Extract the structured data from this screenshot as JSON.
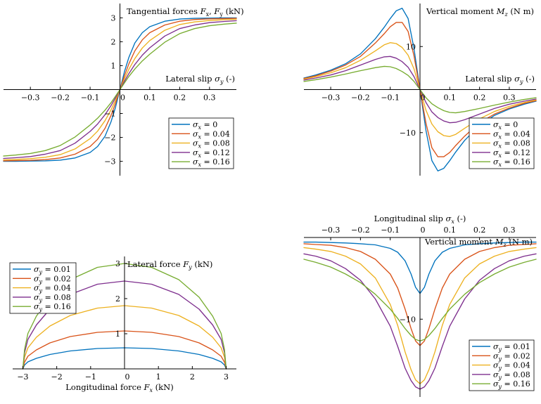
{
  "colors": [
    "#0072BD",
    "#D95319",
    "#EDB120",
    "#7E2F8E",
    "#77AC30"
  ],
  "chart_data": [
    {
      "id": "tangential",
      "type": "line",
      "title_html": "Tangential forces <tspan font-style=\"italic\">F</tspan><tspan font-size=\"8\" dy=\"3\">x</tspan><tspan dy=\"-3\">, </tspan><tspan font-style=\"italic\">F</tspan><tspan font-size=\"8\" dy=\"3\">y</tspan><tspan dy=\"-3\"> (kN)</tspan>",
      "xlabel_html": "Lateral slip <tspan font-style=\"italic\">σ</tspan><tspan font-size=\"8\" dy=\"3\" font-style=\"italic\">y</tspan><tspan dy=\"-3\"> (-)</tspan>",
      "xlim": [
        -0.39,
        0.39
      ],
      "ylim": [
        -3.6,
        3.6
      ],
      "xticks": [
        -0.3,
        -0.2,
        -0.1,
        0,
        0.1,
        0.2,
        0.3
      ],
      "xtick_labels": [
        "−0.3",
        "−0.2",
        "−0.1",
        "0",
        "0.1",
        "0.2",
        "0.3"
      ],
      "yticks": [
        -3,
        -2,
        -1,
        0,
        1,
        2,
        3
      ],
      "ytick_labels": [
        "−3",
        "−2",
        "−1",
        "0",
        "1",
        "2",
        "3"
      ],
      "x": [
        -0.39,
        -0.35,
        -0.3,
        -0.25,
        -0.2,
        -0.15,
        -0.1,
        -0.075,
        -0.05,
        -0.03,
        -0.015,
        0,
        0.015,
        0.03,
        0.05,
        0.075,
        0.1,
        0.15,
        0.2,
        0.25,
        0.3,
        0.35,
        0.39
      ],
      "series": [
        {
          "label_html": "<tspan font-style=\"italic\">σ</tspan><tspan font-size=\"8\" dy=\"3\" font-style=\"italic\">x</tspan><tspan dy=\"-3\"> = 0</tspan>",
          "values": [
            -3.0,
            -3.0,
            -2.99,
            -2.98,
            -2.95,
            -2.86,
            -2.63,
            -2.38,
            -1.95,
            -1.35,
            -0.75,
            0,
            0.75,
            1.35,
            1.95,
            2.38,
            2.63,
            2.86,
            2.95,
            2.98,
            2.99,
            3.0,
            3.0
          ]
        },
        {
          "label_html": "<tspan font-style=\"italic\">σ</tspan><tspan font-size=\"8\" dy=\"3\" font-style=\"italic\">x</tspan><tspan dy=\"-3\"> = 0.04</tspan>",
          "values": [
            -2.98,
            -2.97,
            -2.96,
            -2.93,
            -2.86,
            -2.7,
            -2.38,
            -2.08,
            -1.62,
            -1.08,
            -0.58,
            0,
            0.58,
            1.08,
            1.62,
            2.08,
            2.38,
            2.7,
            2.86,
            2.93,
            2.96,
            2.97,
            2.98
          ]
        },
        {
          "label_html": "<tspan font-style=\"italic\">σ</tspan><tspan font-size=\"8\" dy=\"3\" font-style=\"italic\">x</tspan><tspan dy=\"-3\"> = 0.08</tspan>",
          "values": [
            -2.94,
            -2.92,
            -2.89,
            -2.83,
            -2.72,
            -2.48,
            -2.05,
            -1.74,
            -1.3,
            -0.85,
            -0.45,
            0,
            0.45,
            0.85,
            1.3,
            1.74,
            2.05,
            2.48,
            2.72,
            2.83,
            2.89,
            2.92,
            2.94
          ]
        },
        {
          "label_html": "<tspan font-style=\"italic\">σ</tspan><tspan font-size=\"8\" dy=\"3\" font-style=\"italic\">x</tspan><tspan dy=\"-3\"> = 0.12</tspan>",
          "values": [
            -2.88,
            -2.85,
            -2.8,
            -2.7,
            -2.55,
            -2.24,
            -1.75,
            -1.44,
            -1.05,
            -0.67,
            -0.35,
            0,
            0.35,
            0.67,
            1.05,
            1.44,
            1.75,
            2.24,
            2.55,
            2.7,
            2.8,
            2.85,
            2.88
          ]
        },
        {
          "label_html": "<tspan font-style=\"italic\">σ</tspan><tspan font-size=\"8\" dy=\"3\" font-style=\"italic\">x</tspan><tspan dy=\"-3\"> = 0.16</tspan>",
          "values": [
            -2.78,
            -2.74,
            -2.67,
            -2.55,
            -2.34,
            -1.98,
            -1.48,
            -1.2,
            -0.86,
            -0.55,
            -0.28,
            0,
            0.28,
            0.55,
            0.86,
            1.2,
            1.48,
            1.98,
            2.34,
            2.55,
            2.67,
            2.74,
            2.78
          ]
        }
      ],
      "legend_position": "lower-right"
    },
    {
      "id": "vertical-moment-lateral",
      "type": "line",
      "title_html": "Vertical moment <tspan font-style=\"italic\">M</tspan><tspan font-size=\"8\" dy=\"3\" font-style=\"italic\">z</tspan><tspan dy=\"-3\"> (N m)</tspan>",
      "xlabel_html": "Lateral slip <tspan font-style=\"italic\">σ</tspan><tspan font-size=\"8\" dy=\"3\" font-style=\"italic\">y</tspan><tspan dy=\"-3\"> (-)</tspan>",
      "xlim": [
        -0.39,
        0.39
      ],
      "ylim": [
        -20,
        20
      ],
      "xticks": [
        -0.3,
        -0.2,
        -0.1,
        0,
        0.1,
        0.2,
        0.3
      ],
      "xtick_labels": [
        "−0.3",
        "−0.2",
        "−0.1",
        "0",
        "0.1",
        "0.2",
        "0.3"
      ],
      "yticks": [
        -10,
        0,
        10
      ],
      "ytick_labels": [
        "−10",
        "0",
        "10"
      ],
      "x": [
        -0.39,
        -0.35,
        -0.3,
        -0.25,
        -0.2,
        -0.15,
        -0.12,
        -0.1,
        -0.08,
        -0.06,
        -0.04,
        -0.02,
        0,
        0.02,
        0.04,
        0.06,
        0.08,
        0.1,
        0.12,
        0.15,
        0.2,
        0.25,
        0.3,
        0.35,
        0.39
      ],
      "series": [
        {
          "label_html": "<tspan font-style=\"italic\">σ</tspan><tspan font-size=\"8\" dy=\"3\" font-style=\"italic\">x</tspan><tspan dy=\"-3\"> = 0</tspan>",
          "values": [
            2.7,
            3.4,
            4.5,
            6.0,
            8.3,
            11.8,
            14.5,
            16.5,
            18.3,
            18.9,
            16.5,
            9.5,
            0,
            -9.5,
            -16.5,
            -18.9,
            -18.3,
            -16.5,
            -14.5,
            -11.8,
            -8.3,
            -6.0,
            -4.5,
            -3.4,
            -2.7
          ]
        },
        {
          "label_html": "<tspan font-style=\"italic\">σ</tspan><tspan font-size=\"8\" dy=\"3\" font-style=\"italic\">x</tspan><tspan dy=\"-3\"> = 0.04</tspan>",
          "values": [
            2.6,
            3.2,
            4.3,
            5.7,
            7.7,
            10.8,
            13.0,
            14.6,
            15.6,
            15.6,
            13.5,
            7.8,
            0,
            -7.8,
            -13.5,
            -15.6,
            -15.6,
            -14.6,
            -13.0,
            -10.8,
            -7.7,
            -5.7,
            -4.3,
            -3.2,
            -2.6
          ]
        },
        {
          "label_html": "<tspan font-style=\"italic\">σ</tspan><tspan font-size=\"8\" dy=\"3\" font-style=\"italic\">x</tspan><tspan dy=\"-3\"> = 0.08</tspan>",
          "values": [
            2.4,
            3.0,
            3.9,
            5.1,
            6.8,
            9.0,
            10.4,
            10.9,
            10.7,
            9.8,
            8.0,
            4.8,
            0,
            -4.8,
            -8.0,
            -9.8,
            -10.7,
            -10.9,
            -10.4,
            -9.0,
            -6.8,
            -5.1,
            -3.9,
            -3.0,
            -2.4
          ]
        },
        {
          "label_html": "<tspan font-style=\"italic\">σ</tspan><tspan font-size=\"8\" dy=\"3\" font-style=\"italic\">x</tspan><tspan dy=\"-3\"> = 0.12</tspan>",
          "values": [
            2.2,
            2.7,
            3.4,
            4.4,
            5.7,
            7.0,
            7.6,
            7.7,
            7.3,
            6.5,
            5.2,
            3.0,
            0,
            -3.0,
            -5.2,
            -6.5,
            -7.3,
            -7.7,
            -7.6,
            -7.0,
            -5.7,
            -4.4,
            -3.4,
            -2.7,
            -2.2
          ]
        },
        {
          "label_html": "<tspan font-style=\"italic\">σ</tspan><tspan font-size=\"8\" dy=\"3\" font-style=\"italic\">x</tspan><tspan dy=\"-3\"> = 0.16</tspan>",
          "values": [
            1.9,
            2.3,
            2.9,
            3.6,
            4.4,
            5.1,
            5.4,
            5.3,
            4.9,
            4.2,
            3.3,
            1.9,
            0,
            -1.9,
            -3.3,
            -4.2,
            -4.9,
            -5.3,
            -5.4,
            -5.1,
            -4.4,
            -3.6,
            -2.9,
            -2.3,
            -1.9
          ]
        }
      ],
      "legend_position": "lower-right"
    },
    {
      "id": "friction-ellipse",
      "type": "line",
      "title_html": "Lateral force <tspan font-style=\"italic\">F</tspan><tspan font-size=\"8\" dy=\"3\" font-style=\"italic\">y</tspan><tspan dy=\"-3\"> (kN)</tspan>",
      "xlabel_html": "Longitudinal force <tspan font-style=\"italic\">F</tspan><tspan font-size=\"8\" dy=\"3\" font-style=\"italic\">x</tspan><tspan dy=\"-3\"> (kN)</tspan>",
      "xlim": [
        -3.3,
        3.3
      ],
      "ylim": [
        0,
        3.2
      ],
      "xticks": [
        -3,
        -2,
        -1,
        0,
        1,
        2,
        3
      ],
      "xtick_labels": [
        "−3",
        "−2",
        "−1",
        "0",
        "1",
        "2",
        "3"
      ],
      "yticks": [
        1,
        2,
        3
      ],
      "ytick_labels": [
        "1",
        "2",
        "3"
      ],
      "x": [
        -3.0,
        -2.95,
        -2.85,
        -2.6,
        -2.2,
        -1.6,
        -0.8,
        0,
        0.8,
        1.6,
        2.2,
        2.6,
        2.85,
        2.95,
        3.0
      ],
      "series": [
        {
          "label_html": "<tspan font-style=\"italic\">σ</tspan><tspan font-size=\"8\" dy=\"3\" font-style=\"italic\">y</tspan><tspan dy=\"-3\"> = 0.01</tspan>",
          "values": [
            0.0,
            0.11,
            0.2,
            0.3,
            0.41,
            0.51,
            0.58,
            0.6,
            0.58,
            0.51,
            0.41,
            0.3,
            0.2,
            0.11,
            0.0
          ]
        },
        {
          "label_html": "<tspan font-style=\"italic\">σ</tspan><tspan font-size=\"8\" dy=\"3\" font-style=\"italic\">y</tspan><tspan dy=\"-3\"> = 0.02</tspan>",
          "values": [
            0.0,
            0.19,
            0.36,
            0.54,
            0.74,
            0.92,
            1.04,
            1.08,
            1.04,
            0.92,
            0.74,
            0.54,
            0.36,
            0.19,
            0.0
          ]
        },
        {
          "label_html": "<tspan font-style=\"italic\">σ</tspan><tspan font-size=\"8\" dy=\"3\" font-style=\"italic\">y</tspan><tspan dy=\"-3\"> = 0.04</tspan>",
          "values": [
            0.0,
            0.33,
            0.6,
            0.9,
            1.22,
            1.52,
            1.73,
            1.8,
            1.73,
            1.52,
            1.22,
            0.9,
            0.6,
            0.33,
            0.0
          ]
        },
        {
          "label_html": "<tspan font-style=\"italic\">σ</tspan><tspan font-size=\"8\" dy=\"3\" font-style=\"italic\">y</tspan><tspan dy=\"-3\"> = 0.08</tspan>",
          "values": [
            0.0,
            0.46,
            0.84,
            1.25,
            1.7,
            2.12,
            2.41,
            2.5,
            2.41,
            2.12,
            1.7,
            1.25,
            0.84,
            0.46,
            0.0
          ]
        },
        {
          "label_html": "<tspan font-style=\"italic\">σ</tspan><tspan font-size=\"8\" dy=\"3\" font-style=\"italic\">y</tspan><tspan dy=\"-3\"> = 0.16</tspan>",
          "values": [
            0.0,
            0.55,
            1.01,
            1.5,
            2.04,
            2.54,
            2.89,
            3.0,
            2.89,
            2.54,
            2.04,
            1.5,
            1.01,
            0.55,
            0.0
          ]
        }
      ],
      "legend_position": "top-left"
    },
    {
      "id": "vertical-moment-longitudinal",
      "type": "line",
      "title_html": "Vertical moment <tspan font-style=\"italic\">M</tspan><tspan font-size=\"8\" dy=\"3\" font-style=\"italic\">z</tspan><tspan dy=\"-3\"> (N m)</tspan>",
      "xlabel_html": "Longitudinal slip <tspan font-style=\"italic\">σ</tspan><tspan font-size=\"8\" dy=\"3\" font-style=\"italic\">x</tspan><tspan dy=\"-3\"> (-)</tspan>",
      "xlim": [
        -0.39,
        0.39
      ],
      "ylim": [
        -20,
        0.5
      ],
      "xticks": [
        -0.3,
        -0.2,
        -0.1,
        0,
        0.1,
        0.2,
        0.3
      ],
      "xtick_labels": [
        "−0.3",
        "−0.2",
        "−0.1",
        "0",
        "0.1",
        "0.2",
        "0.3"
      ],
      "yticks": [
        -10
      ],
      "ytick_labels": [
        "−10"
      ],
      "x": [
        -0.39,
        -0.35,
        -0.3,
        -0.25,
        -0.2,
        -0.15,
        -0.1,
        -0.075,
        -0.05,
        -0.03,
        -0.015,
        0,
        0.015,
        0.03,
        0.05,
        0.075,
        0.1,
        0.15,
        0.2,
        0.25,
        0.3,
        0.35,
        0.39
      ],
      "series": [
        {
          "label_html": "<tspan font-style=\"italic\">σ</tspan><tspan font-size=\"8\" dy=\"3\" font-style=\"italic\">y</tspan><tspan dy=\"-3\"> = 0.01</tspan>",
          "values": [
            -0.1,
            -0.1,
            -0.15,
            -0.2,
            -0.3,
            -0.45,
            -0.9,
            -1.4,
            -2.5,
            -4.2,
            -5.9,
            -6.7,
            -5.9,
            -4.2,
            -2.5,
            -1.4,
            -0.9,
            -0.45,
            -0.3,
            -0.2,
            -0.15,
            -0.1,
            -0.1
          ]
        },
        {
          "label_html": "<tspan font-style=\"italic\">σ</tspan><tspan font-size=\"8\" dy=\"3\" font-style=\"italic\">y</tspan><tspan dy=\"-3\"> = 0.02</tspan>",
          "values": [
            -0.3,
            -0.4,
            -0.5,
            -0.8,
            -1.3,
            -2.3,
            -4.2,
            -6.0,
            -8.7,
            -11.2,
            -12.8,
            -13.4,
            -12.8,
            -11.2,
            -8.7,
            -6.0,
            -4.2,
            -2.3,
            -1.3,
            -0.8,
            -0.5,
            -0.4,
            -0.3
          ]
        },
        {
          "label_html": "<tspan font-style=\"italic\">σ</tspan><tspan font-size=\"8\" dy=\"3\" font-style=\"italic\">y</tspan><tspan dy=\"-3\"> = 0.04</tspan>",
          "values": [
            -0.8,
            -1.0,
            -1.3,
            -1.9,
            -2.9,
            -4.7,
            -8.1,
            -10.8,
            -14.2,
            -16.5,
            -17.8,
            -18.3,
            -17.8,
            -16.5,
            -14.2,
            -10.8,
            -8.1,
            -4.7,
            -2.9,
            -1.9,
            -1.3,
            -1.0,
            -0.8
          ]
        },
        {
          "label_html": "<tspan font-style=\"italic\">σ</tspan><tspan font-size=\"8\" dy=\"3\" font-style=\"italic\">y</tspan><tspan dy=\"-3\"> = 0.08</tspan>",
          "values": [
            -1.6,
            -1.9,
            -2.5,
            -3.5,
            -5.0,
            -7.4,
            -10.9,
            -13.5,
            -16.3,
            -17.9,
            -18.7,
            -19.0,
            -18.7,
            -17.9,
            -16.3,
            -13.5,
            -10.9,
            -7.4,
            -5.0,
            -3.5,
            -2.5,
            -1.9,
            -1.6
          ]
        },
        {
          "label_html": "<tspan font-style=\"italic\">σ</tspan><tspan font-size=\"8\" dy=\"3\" font-style=\"italic\">y</tspan><tspan dy=\"-3\"> = 0.16</tspan>",
          "values": [
            -2.3,
            -2.7,
            -3.3,
            -4.2,
            -5.3,
            -6.8,
            -8.7,
            -9.9,
            -11.2,
            -12.1,
            -12.6,
            -12.8,
            -12.6,
            -12.1,
            -11.2,
            -9.9,
            -8.7,
            -6.8,
            -5.3,
            -4.2,
            -3.3,
            -2.7,
            -2.3
          ]
        }
      ],
      "legend_position": "lower-right"
    }
  ]
}
